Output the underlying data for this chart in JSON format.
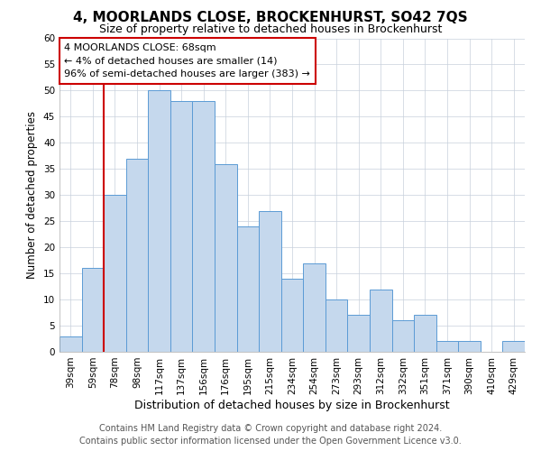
{
  "title": "4, MOORLANDS CLOSE, BROCKENHURST, SO42 7QS",
  "subtitle": "Size of property relative to detached houses in Brockenhurst",
  "xlabel": "Distribution of detached houses by size in Brockenhurst",
  "ylabel": "Number of detached properties",
  "bar_labels": [
    "39sqm",
    "59sqm",
    "78sqm",
    "98sqm",
    "117sqm",
    "137sqm",
    "156sqm",
    "176sqm",
    "195sqm",
    "215sqm",
    "234sqm",
    "254sqm",
    "273sqm",
    "293sqm",
    "312sqm",
    "332sqm",
    "351sqm",
    "371sqm",
    "390sqm",
    "410sqm",
    "429sqm"
  ],
  "bar_values": [
    3,
    16,
    30,
    37,
    50,
    48,
    48,
    36,
    24,
    27,
    14,
    17,
    10,
    7,
    12,
    6,
    7,
    2,
    2,
    0,
    2
  ],
  "bar_color": "#c5d8ed",
  "bar_edge_color": "#5b9bd5",
  "ylim": [
    0,
    60
  ],
  "yticks": [
    0,
    5,
    10,
    15,
    20,
    25,
    30,
    35,
    40,
    45,
    50,
    55,
    60
  ],
  "marker_label": "4 MOORLANDS CLOSE: 68sqm",
  "marker_line_color": "#cc0000",
  "annotation_line1": "← 4% of detached houses are smaller (14)",
  "annotation_line2": "96% of semi-detached houses are larger (383) →",
  "annotation_box_color": "#ffffff",
  "annotation_box_edge_color": "#cc0000",
  "footer_line1": "Contains HM Land Registry data © Crown copyright and database right 2024.",
  "footer_line2": "Contains public sector information licensed under the Open Government Licence v3.0.",
  "background_color": "#ffffff",
  "grid_color": "#c8d0dc",
  "title_fontsize": 11,
  "subtitle_fontsize": 9,
  "xlabel_fontsize": 9,
  "ylabel_fontsize": 8.5,
  "tick_fontsize": 7.5,
  "annotation_fontsize": 8,
  "footer_fontsize": 7
}
